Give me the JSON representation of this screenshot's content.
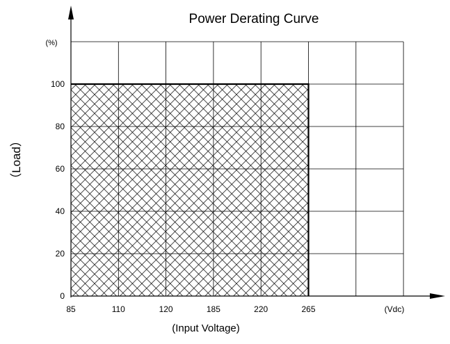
{
  "chart_data": {
    "type": "area",
    "title": "Power Derating Curve",
    "xlabel": "(Input Voltage)",
    "ylabel": "（Load）",
    "x_unit": "(Vdc)",
    "y_unit": "(%)",
    "x_ticks": [
      "85",
      "110",
      "120",
      "185",
      "220",
      "265"
    ],
    "y_ticks": [
      0,
      20,
      40,
      60,
      80,
      100
    ],
    "ylim": [
      0,
      120
    ],
    "grid": true,
    "series": [
      {
        "x": [
          "85",
          "110",
          "120",
          "185",
          "220",
          "265"
        ],
        "values": [
          100,
          100,
          100,
          100,
          100,
          100
        ],
        "fill": "crosshatch"
      }
    ]
  }
}
